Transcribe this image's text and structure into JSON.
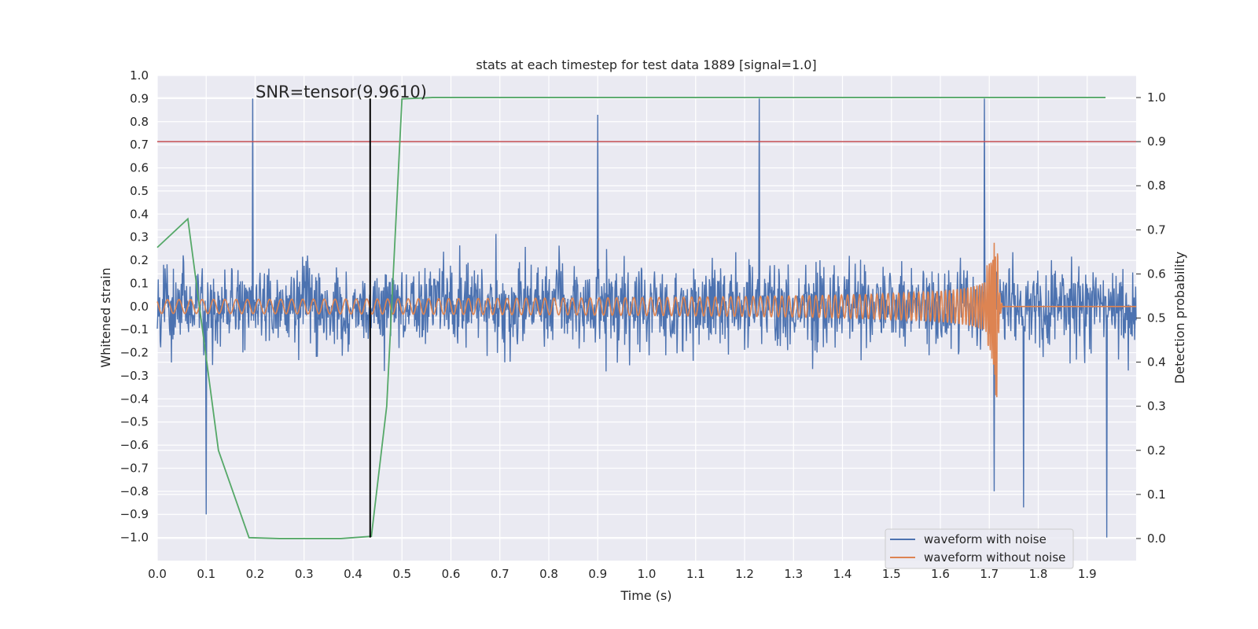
{
  "chart_data": {
    "type": "line",
    "title": "stats at each timestep for test data 1889 [signal=1.0]",
    "xlabel": "Time (s)",
    "ylabel": "Whitened strain",
    "ylabel_right": "Detection probability",
    "xlim": [
      0.0,
      2.0
    ],
    "ylim": [
      -1.1,
      1.0
    ],
    "ylim_right": [
      -0.05,
      1.05
    ],
    "x_ticks": [
      0.0,
      0.1,
      0.2,
      0.3,
      0.4,
      0.5,
      0.6,
      0.7,
      0.8,
      0.9,
      1.0,
      1.1,
      1.2,
      1.3,
      1.4,
      1.5,
      1.6,
      1.7,
      1.8,
      1.9
    ],
    "x_tick_labels": [
      "0.0",
      "0.1",
      "0.2",
      "0.3",
      "0.4",
      "0.5",
      "0.6",
      "0.7",
      "0.8",
      "0.9",
      "1.0",
      "1.1",
      "1.2",
      "1.3",
      "1.4",
      "1.5",
      "1.6",
      "1.7",
      "1.8",
      "1.9"
    ],
    "y_ticks": [
      1.0,
      0.9,
      0.8,
      0.7,
      0.6,
      0.5,
      0.4,
      0.3,
      0.2,
      0.1,
      0.0,
      -0.1,
      -0.2,
      -0.3,
      -0.4,
      -0.5,
      -0.6,
      -0.7,
      -0.8,
      -0.9,
      -1.0
    ],
    "y_tick_labels": [
      "1.0",
      "0.9",
      "0.8",
      "0.7",
      "0.6",
      "0.5",
      "0.4",
      "0.3",
      "0.2",
      "0.1",
      "0.0",
      "−0.1",
      "−0.2",
      "−0.3",
      "−0.4",
      "−0.5",
      "−0.6",
      "−0.7",
      "−0.8",
      "−0.9",
      "−1.0"
    ],
    "y_right_ticks": [
      1.0,
      0.9,
      0.8,
      0.7,
      0.6,
      0.5,
      0.4,
      0.3,
      0.2,
      0.1,
      0.0
    ],
    "y_right_tick_labels": [
      "1.0",
      "0.9",
      "0.8",
      "0.7",
      "0.6",
      "0.5",
      "0.4",
      "0.3",
      "0.2",
      "0.1",
      "0.0"
    ],
    "grid": true,
    "legend_position": "bottom-right",
    "series": [
      {
        "name": "waveform with noise",
        "axis": "left",
        "color": "#4c72b0",
        "style": "noisy",
        "x_range": [
          0.0,
          2.0
        ],
        "amplitude_range": [
          -1.0,
          0.9
        ],
        "peaks": [
          [
            0.1,
            -0.9
          ],
          [
            0.195,
            0.9
          ],
          [
            0.9,
            0.83
          ],
          [
            1.23,
            0.9
          ],
          [
            1.69,
            0.9
          ],
          [
            1.71,
            -0.8
          ],
          [
            1.77,
            -0.87
          ],
          [
            1.94,
            -1.0
          ]
        ]
      },
      {
        "name": "waveform without noise",
        "axis": "left",
        "color": "#dd8452",
        "style": "chirp",
        "x_range": [
          0.0,
          2.0
        ],
        "merger_time": 1.715,
        "start_amplitude": 0.03,
        "peak_amplitude": 0.5
      },
      {
        "axis": "right",
        "color": "#55a868",
        "x": [
          0.0,
          0.0625,
          0.125,
          0.1875,
          0.25,
          0.3125,
          0.375,
          0.4375,
          0.4688,
          0.5,
          0.5625,
          0.625,
          0.6875,
          0.75,
          0.8125,
          0.875,
          0.9375,
          1.0,
          1.0625,
          1.125,
          1.1875,
          1.25,
          1.3125,
          1.375,
          1.4375,
          1.5,
          1.5625,
          1.625,
          1.6875,
          1.75,
          1.8125,
          1.875,
          1.9375
        ],
        "y": [
          0.66,
          0.725,
          0.2,
          0.002,
          0.0,
          0.0,
          0.0,
          0.005,
          0.3,
          0.997,
          1.0,
          1.0,
          1.0,
          1.0,
          1.0,
          1.0,
          1.0,
          1.0,
          1.0,
          1.0,
          1.0,
          1.0,
          1.0,
          1.0,
          1.0,
          1.0,
          1.0,
          1.0,
          1.0,
          1.0,
          1.0,
          1.0,
          1.0
        ]
      }
    ],
    "hlines": [
      {
        "axis": "right",
        "y": 0.9,
        "color": "#c44e52"
      }
    ],
    "vlines": [
      {
        "x": 0.435,
        "ymin": -1.0,
        "ymax": 0.9,
        "color": "#000000"
      }
    ],
    "annotations": [
      {
        "text": "SNR=tensor(9.9610)",
        "x": 0.2,
        "y": 0.9
      }
    ]
  }
}
